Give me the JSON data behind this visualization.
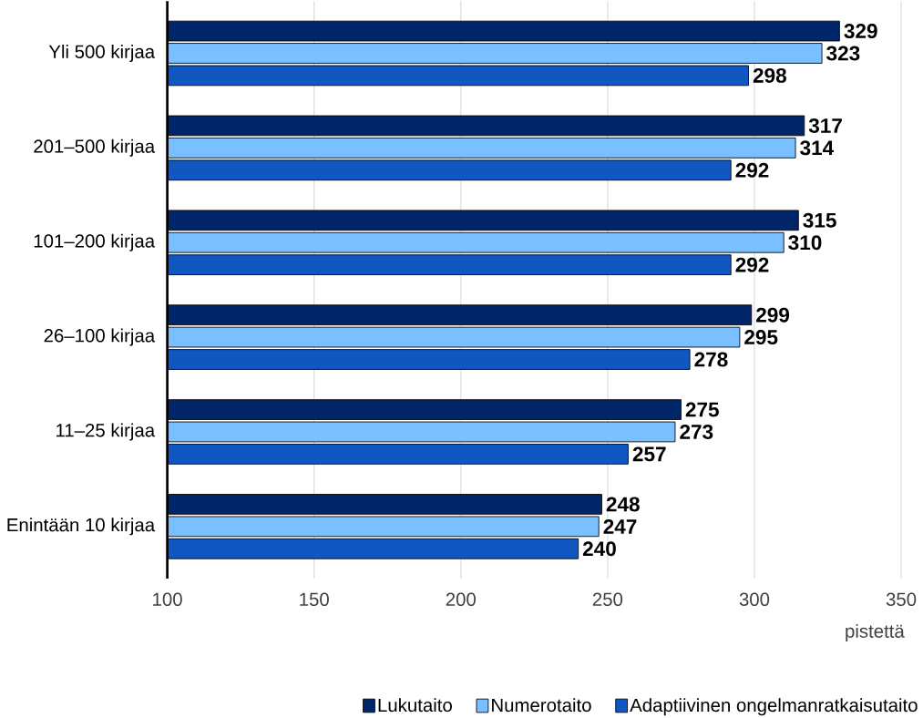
{
  "chart_data": {
    "type": "bar",
    "orientation": "horizontal",
    "xlabel": "pistettä",
    "categories": [
      "Yli 500 kirjaa",
      "201–500 kirjaa",
      "101–200 kirjaa",
      "26–100 kirjaa",
      "11–25 kirjaa",
      "Enintään 10 kirjaa"
    ],
    "series": [
      {
        "name": "Lukutaito",
        "color": "#002669",
        "values": [
          329,
          317,
          315,
          299,
          275,
          248
        ]
      },
      {
        "name": "Numerotaito",
        "color": "#7abfff",
        "values": [
          323,
          314,
          310,
          295,
          273,
          247
        ]
      },
      {
        "name": "Adaptiivinen ongelmanratkaisutaito",
        "color": "#1157c2",
        "values": [
          298,
          292,
          292,
          278,
          257,
          240
        ]
      }
    ],
    "xlim": [
      100,
      350
    ],
    "xticks": [
      100,
      150,
      200,
      250,
      300,
      350
    ],
    "grid": "x",
    "legend": "bottom",
    "data_labels": true
  }
}
